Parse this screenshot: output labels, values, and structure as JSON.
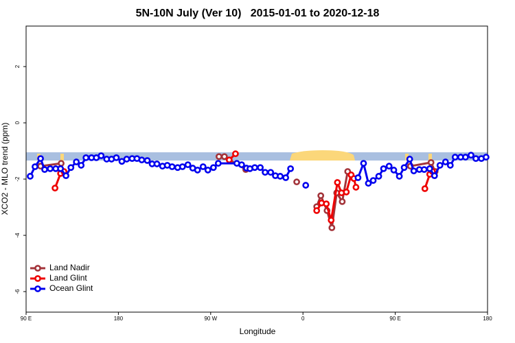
{
  "chart_data": {
    "type": "line",
    "title": "5N-10N July (Ver 10)   2015-01-01 to 2020-12-18",
    "x_label": "Longitude",
    "y_label": "XCO2 - MLO trend (ppm)",
    "xlim": [
      90,
      540
    ],
    "ylim": [
      -6.73,
      3.44
    ],
    "xticks": [
      {
        "value": 90,
        "label": "90 E"
      },
      180,
      {
        "value": 270,
        "label": "90 W"
      },
      {
        "value": 360,
        "label": "0"
      },
      {
        "value": 450,
        "label": "90 E"
      },
      {
        "value": 540,
        "label": "180"
      }
    ],
    "yticks": [
      -6,
      -4,
      -2,
      0,
      2
    ],
    "legend": "bottom-left",
    "series": [
      {
        "name": "Land Nadir",
        "color": "#a3343a",
        "x": [
          104.1,
          124.2,
          null,
          278.1,
          283.4,
          304.2,
          null,
          353.9,
          null,
          373.4,
          377.4,
          383.5,
          388.2,
          392.9,
          398.3,
          403.6,
          null,
          464.8,
          484.9,
          488.9
        ],
        "values": [
          -1.54,
          -1.44,
          null,
          -1.2,
          -1.2,
          -1.66,
          null,
          -2.1,
          null,
          -2.98,
          -2.59,
          -3.12,
          -3.73,
          -2.49,
          -2.8,
          -1.73,
          null,
          -1.54,
          -1.41,
          -1.73
        ]
      },
      {
        "name": "Land Glint",
        "color": "#ee0000",
        "x": [
          118.2,
          123.6,
          126.9,
          null,
          288.1,
          294.2,
          null,
          373.4,
          378.1,
          382.8,
          387.5,
          393.6,
          397.6,
          402.3,
          407.0,
          409.7,
          411.7,
          null,
          478.9,
          483.6,
          486.3
        ],
        "values": [
          -2.32,
          -1.8,
          -1.73,
          null,
          -1.32,
          -1.1,
          null,
          -3.12,
          -2.85,
          -2.88,
          -3.46,
          -2.12,
          -2.49,
          -2.46,
          -1.85,
          -1.98,
          -2.29,
          null,
          -2.34,
          -1.83,
          -1.73
        ]
      },
      {
        "name": "Ocean Glint",
        "color": "#0000ee",
        "x": [
          94.0,
          98.7,
          104.1,
          108.1,
          113.5,
          118.9,
          123.6,
          128.9,
          133.7,
          139.0,
          143.7,
          148.4,
          153.8,
          158.5,
          163.2,
          168.6,
          173.3,
          178.0,
          183.4,
          188.1,
          193.4,
          198.1,
          202.8,
          208.2,
          212.9,
          217.6,
          223.0,
          227.7,
          232.4,
          237.8,
          242.5,
          247.8,
          252.5,
          257.2,
          262.6,
          267.3,
          272.7,
          277.4,
          295.5,
          300.2,
          304.9,
          308.3,
          313.0,
          318.4,
          323.1,
          328.5,
          333.1,
          337.8,
          343.2,
          347.9,
          null,
          362.7,
          null,
          413.7,
          419.1,
          423.8,
          428.5,
          433.9,
          438.6,
          444.0,
          448.6,
          454.0,
          458.7,
          464.1,
          468.1,
          473.5,
          478.2,
          483.6,
          488.3,
          493.6,
          499.0,
          503.7,
          508.4,
          513.8,
          518.5,
          523.9,
          528.6,
          534.0,
          538.6
        ],
        "values": [
          -1.9,
          -1.56,
          -1.27,
          -1.66,
          -1.63,
          -1.63,
          -1.63,
          -1.88,
          -1.59,
          -1.39,
          -1.51,
          -1.24,
          -1.24,
          -1.24,
          -1.17,
          -1.29,
          -1.29,
          -1.24,
          -1.37,
          -1.29,
          -1.27,
          -1.27,
          -1.32,
          -1.34,
          -1.46,
          -1.46,
          -1.54,
          -1.51,
          -1.56,
          -1.59,
          -1.56,
          -1.49,
          -1.61,
          -1.68,
          -1.56,
          -1.68,
          -1.59,
          -1.44,
          -1.44,
          -1.49,
          -1.61,
          -1.63,
          -1.59,
          -1.59,
          -1.76,
          -1.76,
          -1.88,
          -1.9,
          -1.95,
          -1.63,
          null,
          -2.22,
          null,
          -1.95,
          -1.44,
          -2.15,
          -2.05,
          -1.9,
          -1.63,
          -1.54,
          -1.68,
          -1.9,
          -1.59,
          -1.29,
          -1.71,
          -1.66,
          -1.66,
          -1.63,
          -1.88,
          -1.51,
          -1.39,
          -1.51,
          -1.22,
          -1.22,
          -1.22,
          -1.15,
          -1.27,
          -1.27,
          -1.22
        ]
      }
    ]
  }
}
